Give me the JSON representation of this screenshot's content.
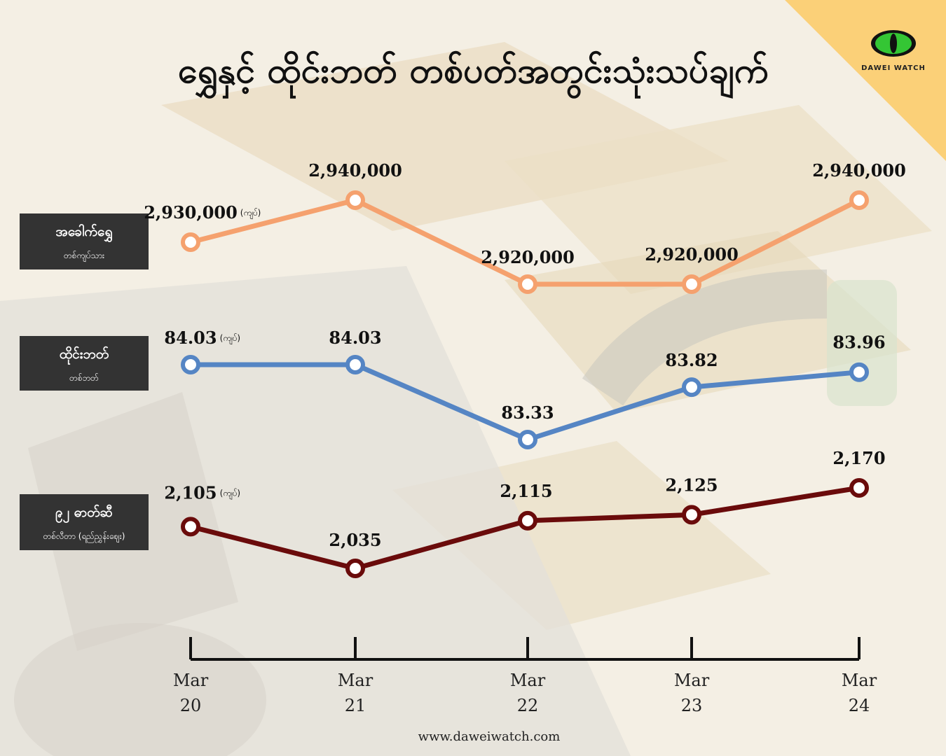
{
  "title": "ရွှေနှင့် ထိုင်းဘတ် တစ်ပတ်အတွင်းသုံးသပ်ချက်",
  "logo": {
    "brand": "DAWEI WATCH",
    "icon": "eye-icon"
  },
  "website": "www.daweiwatch.com",
  "colors": {
    "gold": "#f5a16e",
    "baht": "#5585c4",
    "fuel": "#6a0b0b",
    "corner": "#fbd078"
  },
  "labels": {
    "gold": {
      "main": "အခေါက်ရွှေ",
      "sub": "တစ်ကျပ်သား"
    },
    "baht": {
      "main": "ထိုင်းဘတ်",
      "sub": "တစ်ဘတ်"
    },
    "fuel": {
      "main": "၉၂ ဓာတ်ဆီ",
      "sub": "တစ်လီတာ (ရည်ညွှန်းဈေး)"
    }
  },
  "unit": "(ကျပ်)",
  "chart_data": {
    "type": "line",
    "categories": [
      {
        "month": "Mar",
        "day": "20"
      },
      {
        "month": "Mar",
        "day": "21"
      },
      {
        "month": "Mar",
        "day": "22"
      },
      {
        "month": "Mar",
        "day": "23"
      },
      {
        "month": "Mar",
        "day": "24"
      }
    ],
    "series": [
      {
        "key": "gold",
        "values": [
          2930000,
          2940000,
          2920000,
          2920000,
          2940000
        ],
        "labels": [
          "2,930,000",
          "2,940,000",
          "2,920,000",
          "2,920,000",
          "2,940,000"
        ]
      },
      {
        "key": "baht",
        "values": [
          84.03,
          84.03,
          83.33,
          83.82,
          83.96
        ],
        "labels": [
          "84.03",
          "84.03",
          "83.33",
          "83.82",
          "83.96"
        ]
      },
      {
        "key": "fuel",
        "values": [
          2105,
          2035,
          2115,
          2125,
          2170
        ],
        "labels": [
          "2,105",
          "2,035",
          "2,115",
          "2,125",
          "2,170"
        ]
      }
    ]
  }
}
